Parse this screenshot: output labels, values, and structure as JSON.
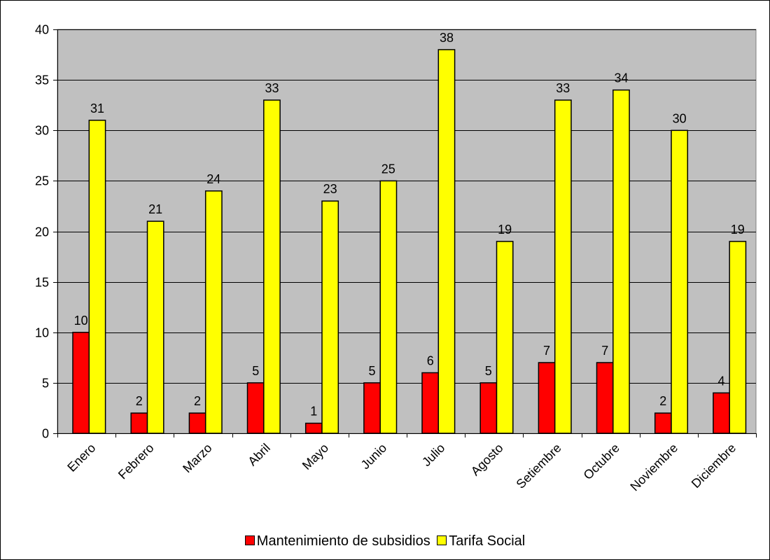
{
  "chart_data": {
    "type": "bar",
    "title": "",
    "xlabel": "",
    "ylabel": "",
    "categories": [
      "Enero",
      "Febrero",
      "Marzo",
      "Abril",
      "Mayo",
      "Junio",
      "Julio",
      "Agosto",
      "Setiembre",
      "Octubre",
      "Noviembre",
      "Diciembre"
    ],
    "series": [
      {
        "name": "Mantenimiento de subsidios",
        "color": "#ff0000",
        "values": [
          10,
          2,
          2,
          5,
          1,
          5,
          6,
          5,
          7,
          7,
          2,
          4
        ]
      },
      {
        "name": "Tarifa Social",
        "color": "#ffff00",
        "values": [
          31,
          21,
          24,
          33,
          23,
          25,
          38,
          19,
          33,
          34,
          30,
          19
        ]
      }
    ],
    "ylim": [
      0,
      40
    ],
    "yticks": [
      0,
      5,
      10,
      15,
      20,
      25,
      30,
      35,
      40
    ],
    "grid": true,
    "plot_background": "#c0c0c0",
    "legend_position": "bottom",
    "data_labels": true
  }
}
